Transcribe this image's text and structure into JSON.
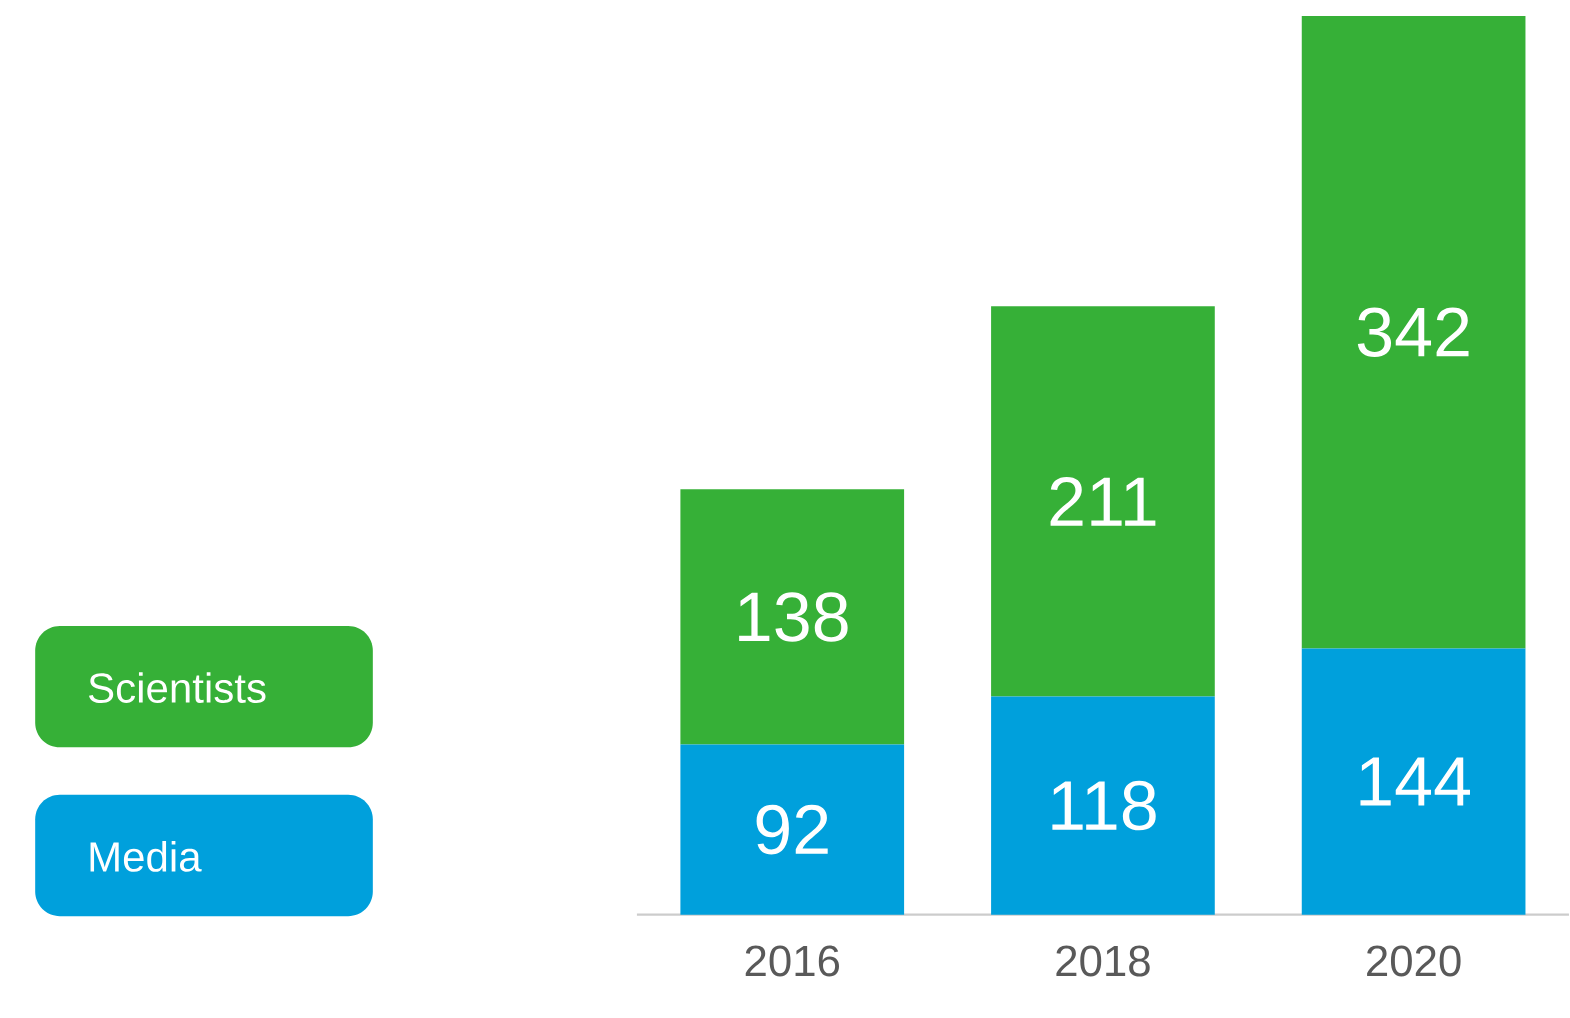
{
  "chart_data": {
    "type": "bar",
    "stacked": true,
    "data_labels": true,
    "legend": "left",
    "categories": [
      "2016",
      "2018",
      "2020"
    ],
    "series": [
      {
        "name": "Media",
        "color": "#00a0dc",
        "values": [
          92,
          118,
          144
        ]
      },
      {
        "name": "Scientists",
        "color": "#36b037",
        "values": [
          138,
          211,
          342
        ]
      }
    ]
  }
}
